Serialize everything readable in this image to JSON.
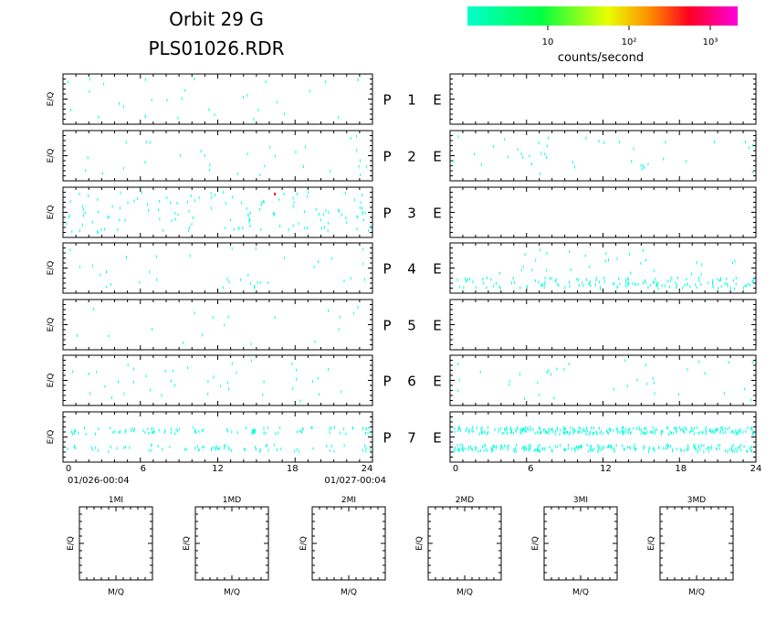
{
  "header": {
    "title_line1": "Orbit 29 G",
    "title_line2": "PLS01026.RDR"
  },
  "colorbar": {
    "colors": [
      "#00ffcc",
      "#00ff44",
      "#eaff00",
      "#ff8800",
      "#ff0022",
      "#ff00dd"
    ],
    "tick_labels": [
      "10",
      "10²",
      "10³"
    ],
    "unit_label": "counts/second"
  },
  "chart_data": [
    {
      "type": "scatter",
      "description_of_axes": "time-of-day (hours) vs E/Q, sparse counts",
      "ylabel": "E/Q",
      "xlim": [
        0,
        24
      ],
      "x_ticks": [
        0,
        6,
        12,
        18,
        24
      ],
      "x_tick_labels": [
        "0",
        "6",
        "12",
        "18",
        "24"
      ],
      "start_label": "01/026-00:04",
      "end_label": "01/027-00:04",
      "panels": [
        {
          "name": "P",
          "row": 1,
          "density": 30
        },
        {
          "name": "P",
          "row": 2,
          "density": 30
        },
        {
          "name": "P",
          "row": 3,
          "density": 130
        },
        {
          "name": "P",
          "row": 4,
          "density": 35
        },
        {
          "name": "P",
          "row": 5,
          "density": 18
        },
        {
          "name": "P",
          "row": 6,
          "density": 40
        },
        {
          "name": "P",
          "row": 7,
          "density": 160
        }
      ]
    },
    {
      "type": "scatter",
      "ylabel": "",
      "xlim": [
        0,
        24
      ],
      "x_ticks": [
        0,
        6,
        12,
        18,
        24
      ],
      "x_tick_labels": [
        "0",
        "6",
        "12",
        "18",
        "24"
      ],
      "panels": [
        {
          "name": "E",
          "row": 1,
          "density": 0
        },
        {
          "name": "E",
          "row": 2,
          "density": 40
        },
        {
          "name": "E",
          "row": 3,
          "density": 0
        },
        {
          "name": "E",
          "row": 4,
          "density": 170
        },
        {
          "name": "E",
          "row": 5,
          "density": 0
        },
        {
          "name": "E",
          "row": 6,
          "density": 35
        },
        {
          "name": "E",
          "row": 7,
          "density": 500
        }
      ]
    },
    {
      "type": "heatmap",
      "xlabel": "M/Q",
      "ylabel": "E/Q",
      "panels": [
        {
          "title": "1MI"
        },
        {
          "title": "1MD"
        },
        {
          "title": "2MI"
        },
        {
          "title": "2MD"
        },
        {
          "title": "3MI"
        },
        {
          "title": "3MD"
        }
      ]
    }
  ]
}
